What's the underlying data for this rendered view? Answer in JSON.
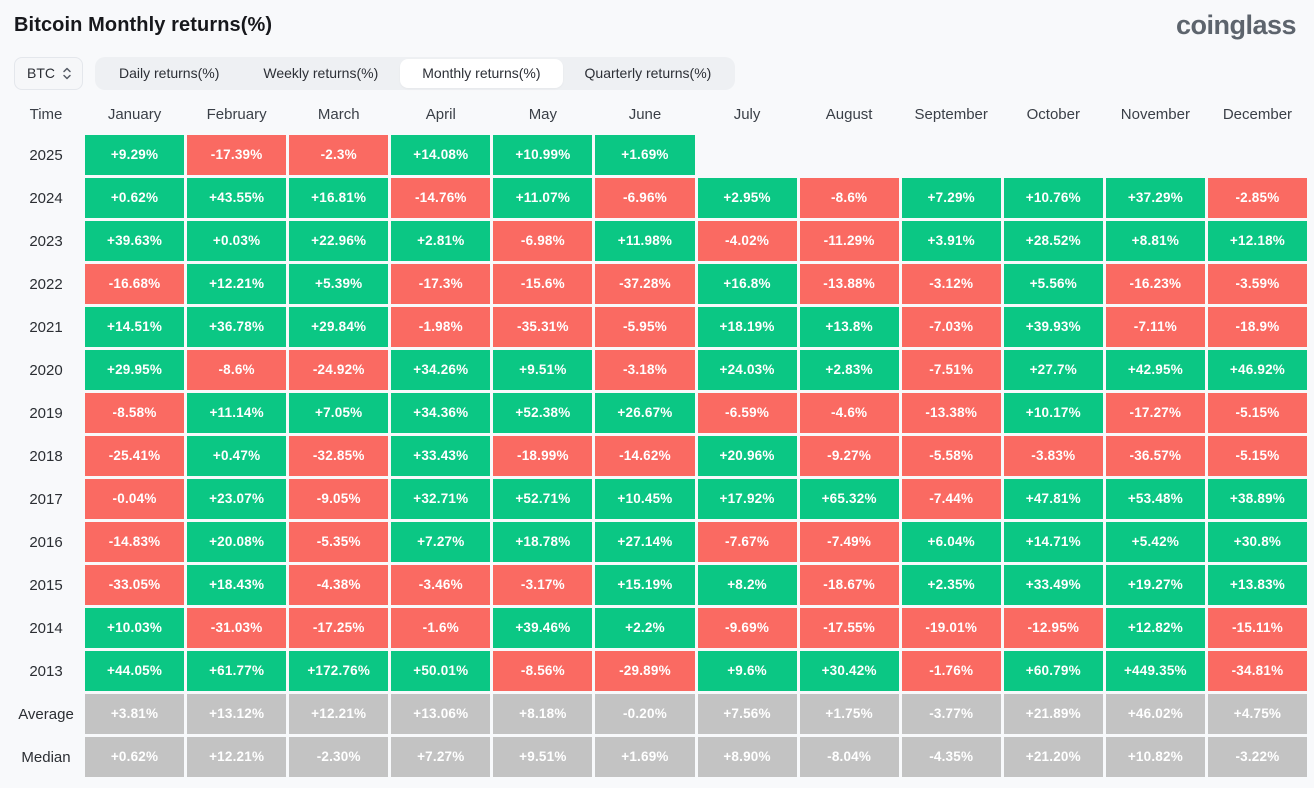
{
  "header": {
    "title": "Bitcoin Monthly returns(%)",
    "logo": "coinglass"
  },
  "controls": {
    "symbol_select": {
      "value": "BTC"
    },
    "tabs": [
      {
        "label": "Daily returns(%)",
        "active": false
      },
      {
        "label": "Weekly returns(%)",
        "active": false
      },
      {
        "label": "Monthly returns(%)",
        "active": true
      },
      {
        "label": "Quarterly returns(%)",
        "active": false
      }
    ]
  },
  "colors": {
    "positive": "#0bc784",
    "negative": "#fa6a62",
    "neutral": "#c3c3c3"
  },
  "chart_data": {
    "type": "heatmap",
    "title": "Bitcoin Monthly returns(%)",
    "unit": "%",
    "columns": [
      "Time",
      "January",
      "February",
      "March",
      "April",
      "May",
      "June",
      "July",
      "August",
      "September",
      "October",
      "November",
      "December"
    ],
    "rows": [
      {
        "label": "2025",
        "neutral": false,
        "values": [
          "+9.29%",
          "-17.39%",
          "-2.3%",
          "+14.08%",
          "+10.99%",
          "+1.69%",
          "",
          "",
          "",
          "",
          "",
          ""
        ]
      },
      {
        "label": "2024",
        "neutral": false,
        "values": [
          "+0.62%",
          "+43.55%",
          "+16.81%",
          "-14.76%",
          "+11.07%",
          "-6.96%",
          "+2.95%",
          "-8.6%",
          "+7.29%",
          "+10.76%",
          "+37.29%",
          "-2.85%"
        ]
      },
      {
        "label": "2023",
        "neutral": false,
        "values": [
          "+39.63%",
          "+0.03%",
          "+22.96%",
          "+2.81%",
          "-6.98%",
          "+11.98%",
          "-4.02%",
          "-11.29%",
          "+3.91%",
          "+28.52%",
          "+8.81%",
          "+12.18%"
        ]
      },
      {
        "label": "2022",
        "neutral": false,
        "values": [
          "-16.68%",
          "+12.21%",
          "+5.39%",
          "-17.3%",
          "-15.6%",
          "-37.28%",
          "+16.8%",
          "-13.88%",
          "-3.12%",
          "+5.56%",
          "-16.23%",
          "-3.59%"
        ]
      },
      {
        "label": "2021",
        "neutral": false,
        "values": [
          "+14.51%",
          "+36.78%",
          "+29.84%",
          "-1.98%",
          "-35.31%",
          "-5.95%",
          "+18.19%",
          "+13.8%",
          "-7.03%",
          "+39.93%",
          "-7.11%",
          "-18.9%"
        ]
      },
      {
        "label": "2020",
        "neutral": false,
        "values": [
          "+29.95%",
          "-8.6%",
          "-24.92%",
          "+34.26%",
          "+9.51%",
          "-3.18%",
          "+24.03%",
          "+2.83%",
          "-7.51%",
          "+27.7%",
          "+42.95%",
          "+46.92%"
        ]
      },
      {
        "label": "2019",
        "neutral": false,
        "values": [
          "-8.58%",
          "+11.14%",
          "+7.05%",
          "+34.36%",
          "+52.38%",
          "+26.67%",
          "-6.59%",
          "-4.6%",
          "-13.38%",
          "+10.17%",
          "-17.27%",
          "-5.15%"
        ]
      },
      {
        "label": "2018",
        "neutral": false,
        "values": [
          "-25.41%",
          "+0.47%",
          "-32.85%",
          "+33.43%",
          "-18.99%",
          "-14.62%",
          "+20.96%",
          "-9.27%",
          "-5.58%",
          "-3.83%",
          "-36.57%",
          "-5.15%"
        ]
      },
      {
        "label": "2017",
        "neutral": false,
        "values": [
          "-0.04%",
          "+23.07%",
          "-9.05%",
          "+32.71%",
          "+52.71%",
          "+10.45%",
          "+17.92%",
          "+65.32%",
          "-7.44%",
          "+47.81%",
          "+53.48%",
          "+38.89%"
        ]
      },
      {
        "label": "2016",
        "neutral": false,
        "values": [
          "-14.83%",
          "+20.08%",
          "-5.35%",
          "+7.27%",
          "+18.78%",
          "+27.14%",
          "-7.67%",
          "-7.49%",
          "+6.04%",
          "+14.71%",
          "+5.42%",
          "+30.8%"
        ]
      },
      {
        "label": "2015",
        "neutral": false,
        "values": [
          "-33.05%",
          "+18.43%",
          "-4.38%",
          "-3.46%",
          "-3.17%",
          "+15.19%",
          "+8.2%",
          "-18.67%",
          "+2.35%",
          "+33.49%",
          "+19.27%",
          "+13.83%"
        ]
      },
      {
        "label": "2014",
        "neutral": false,
        "values": [
          "+10.03%",
          "-31.03%",
          "-17.25%",
          "-1.6%",
          "+39.46%",
          "+2.2%",
          "-9.69%",
          "-17.55%",
          "-19.01%",
          "-12.95%",
          "+12.82%",
          "-15.11%"
        ]
      },
      {
        "label": "2013",
        "neutral": false,
        "values": [
          "+44.05%",
          "+61.77%",
          "+172.76%",
          "+50.01%",
          "-8.56%",
          "-29.89%",
          "+9.6%",
          "+30.42%",
          "-1.76%",
          "+60.79%",
          "+449.35%",
          "-34.81%"
        ]
      },
      {
        "label": "Average",
        "neutral": true,
        "values": [
          "+3.81%",
          "+13.12%",
          "+12.21%",
          "+13.06%",
          "+8.18%",
          "-0.20%",
          "+7.56%",
          "+1.75%",
          "-3.77%",
          "+21.89%",
          "+46.02%",
          "+4.75%"
        ]
      },
      {
        "label": "Median",
        "neutral": true,
        "values": [
          "+0.62%",
          "+12.21%",
          "-2.30%",
          "+7.27%",
          "+9.51%",
          "+1.69%",
          "+8.90%",
          "-8.04%",
          "-4.35%",
          "+21.20%",
          "+10.82%",
          "-3.22%"
        ]
      }
    ]
  }
}
